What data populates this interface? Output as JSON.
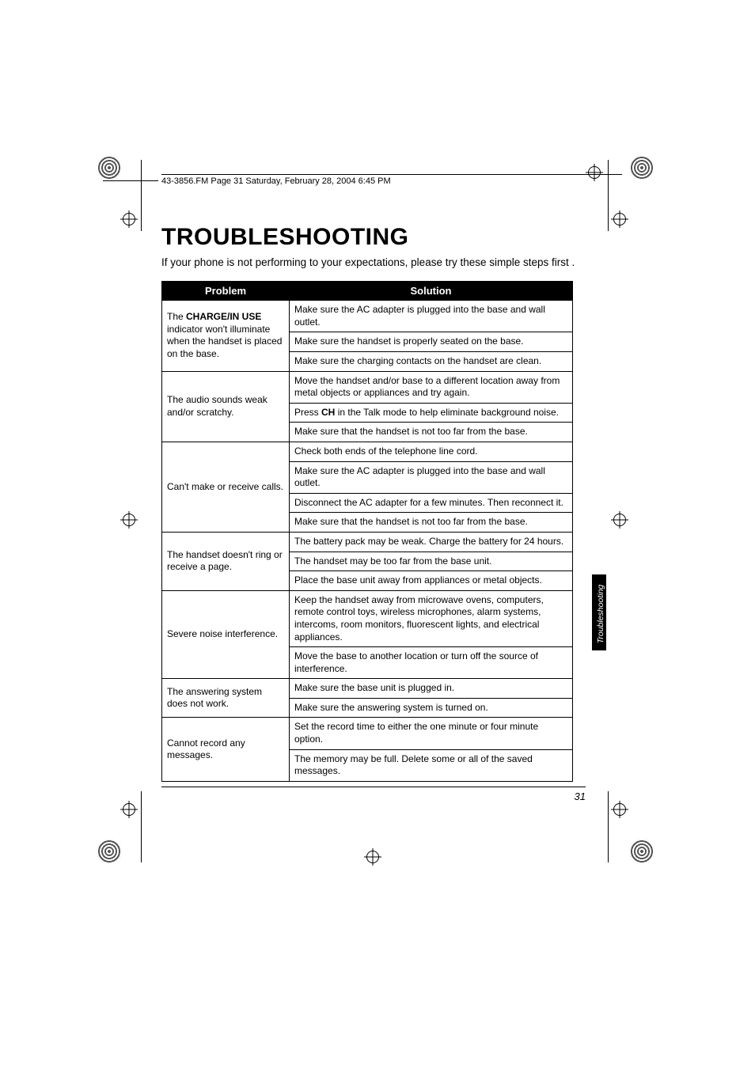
{
  "runningHead": "43-3856.FM  Page 31  Saturday, February 28, 2004  6:45 PM",
  "title": "Troubleshooting",
  "intro": "If your phone is not performing to your expectations, please try these simple steps first .",
  "sideTab": "Troubleshooting",
  "pageNumber": "31",
  "headers": {
    "problem": "Problem",
    "solution": "Solution"
  },
  "rows": [
    {
      "problem": {
        "pre": "The ",
        "bold": "CHARGE/IN USE",
        "post": " indicator won't illuminate when the handset is placed on the base."
      },
      "solutions": [
        "Make sure the AC adapter is plugged into the base and wall outlet.",
        "Make sure the handset is properly seated on the base.",
        "Make sure the charging contacts on the handset are clean."
      ]
    },
    {
      "problem": {
        "text": "The audio sounds weak and/or scratchy."
      },
      "solutions": [
        "Move the handset and/or base to a different location away from metal objects or appliances and try again.",
        {
          "pre": "Press ",
          "bold": "CH",
          "post": " in the Talk mode to help eliminate background noise."
        },
        "Make sure that the handset is not too far from the base."
      ]
    },
    {
      "problem": {
        "text": "Can't make or receive calls."
      },
      "solutions": [
        "Check both ends of the telephone line cord.",
        "Make sure the AC adapter is plugged into the base and wall outlet.",
        "Disconnect the AC adapter for a few minutes. Then reconnect it.",
        "Make sure that the handset is not too far from the base."
      ]
    },
    {
      "problem": {
        "text": "The handset doesn't ring or receive a page."
      },
      "solutions": [
        "The battery pack may be weak. Charge the battery for 24 hours.",
        "The handset may be too far from the base unit.",
        "Place the base unit away from appliances or metal objects."
      ]
    },
    {
      "problem": {
        "text": "Severe noise interference."
      },
      "solutions": [
        "Keep the handset away from microwave ovens, computers, remote control toys, wireless microphones, alarm systems, intercoms, room monitors, fluorescent lights, and electrical appliances.",
        "Move the base to another location or turn off the source of interference."
      ]
    },
    {
      "problem": {
        "text": "The answering system does not work."
      },
      "solutions": [
        "Make sure the base unit is plugged in.",
        "Make sure the answering system is turned on."
      ]
    },
    {
      "problem": {
        "text": "Cannot record any messages."
      },
      "solutions": [
        "Set the record time to either the one minute or four minute option.",
        "The memory may be full. Delete some or all of the saved messages."
      ]
    }
  ]
}
